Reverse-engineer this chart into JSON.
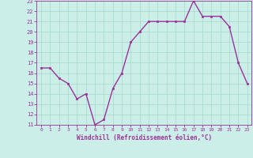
{
  "x": [
    0,
    1,
    2,
    3,
    4,
    5,
    6,
    7,
    8,
    9,
    10,
    11,
    12,
    13,
    14,
    15,
    16,
    17,
    18,
    19,
    20,
    21,
    22,
    23
  ],
  "y": [
    16.5,
    16.5,
    15.5,
    15.0,
    13.5,
    14.0,
    11.0,
    11.5,
    14.5,
    16.0,
    19.0,
    20.0,
    21.0,
    21.0,
    21.0,
    21.0,
    21.0,
    23.0,
    21.5,
    21.5,
    21.5,
    20.5,
    17.0,
    15.0
  ],
  "line_color": "#993399",
  "marker": "s",
  "marker_size": 2,
  "line_width": 1.0,
  "bg_color": "#cceee8",
  "grid_color": "#aaddcc",
  "xlabel": "Windchill (Refroidissement éolien,°C)",
  "tick_color": "#993399",
  "xlim": [
    -0.5,
    23.5
  ],
  "ylim": [
    11,
    23
  ],
  "yticks": [
    11,
    12,
    13,
    14,
    15,
    16,
    17,
    18,
    19,
    20,
    21,
    22,
    23
  ],
  "xticks": [
    0,
    1,
    2,
    3,
    4,
    5,
    6,
    7,
    8,
    9,
    10,
    11,
    12,
    13,
    14,
    15,
    16,
    17,
    18,
    19,
    20,
    21,
    22,
    23
  ]
}
